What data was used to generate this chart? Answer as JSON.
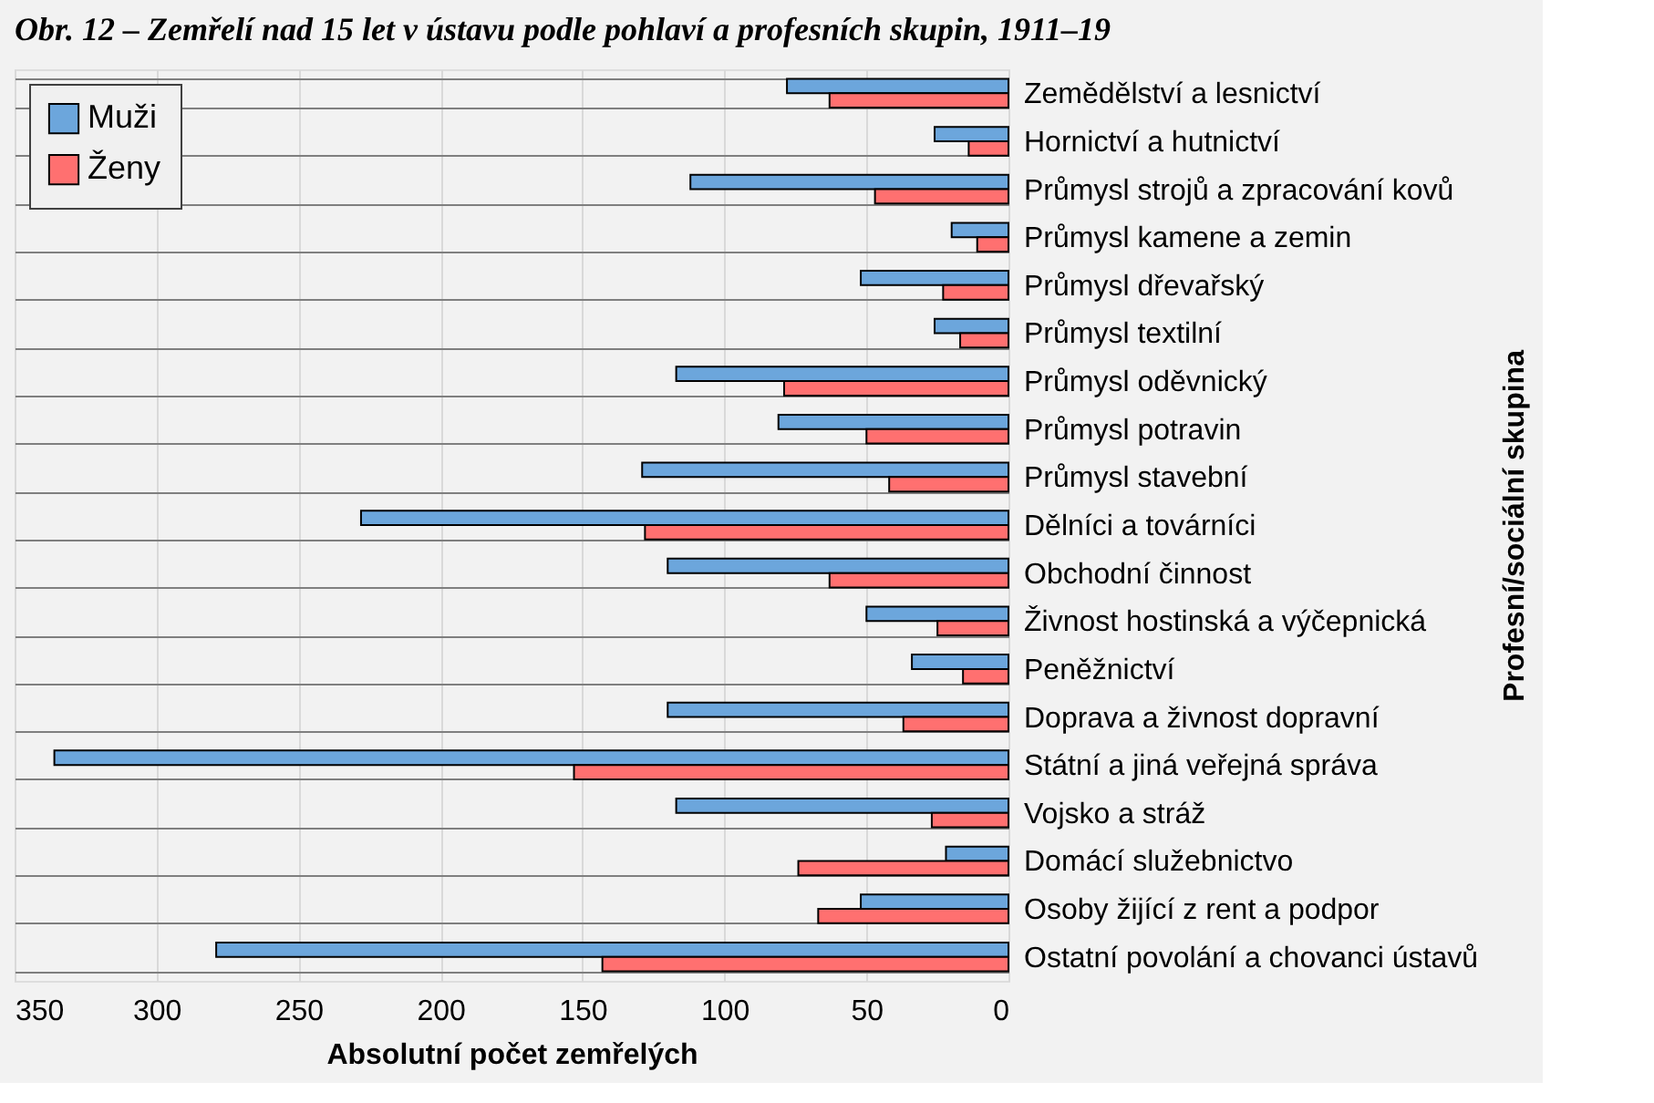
{
  "chart_data": {
    "type": "bar",
    "orientation": "horizontal",
    "title": "Obr. 12 – Zemřelí nad 15 let v ústavu podle pohlaví a profesních skupin, 1911–19",
    "xlabel": "Absolutní počet zemřelých",
    "ylabel": "Profesní/sociální skupina",
    "categories": [
      "Zemědělství a lesnictví",
      "Hornictví a hutnictví",
      "Průmysl strojů a zpracování kovů",
      "Průmysl kamene a zemin",
      "Průmysl dřevařský",
      "Průmysl textilní",
      "Průmysl oděvnický",
      "Průmysl potravin",
      "Průmysl stavební",
      "Dělníci a továrníci",
      "Obchodní činnost",
      "Živnost hostinská a výčepnická",
      "Peněžnictví",
      "Doprava a živnost dopravní",
      "Státní a jiná veřejná správa",
      "Vojsko a stráž",
      "Domácí služebnictvo",
      "Osoby žijící z rent a podpor",
      "Ostatní povolání a chovanci ústavů"
    ],
    "series": [
      {
        "name": "Muži",
        "color": "#6ca6dc",
        "values": [
          78,
          26,
          112,
          20,
          52,
          26,
          117,
          81,
          129,
          228,
          120,
          50,
          34,
          120,
          336,
          117,
          22,
          52,
          279
        ]
      },
      {
        "name": "Ženy",
        "color": "#ff7070",
        "values": [
          63,
          14,
          47,
          11,
          23,
          17,
          79,
          50,
          42,
          128,
          63,
          25,
          16,
          37,
          153,
          27,
          74,
          67,
          143
        ]
      }
    ],
    "xlim": [
      350,
      0
    ],
    "xticks": [
      350,
      300,
      250,
      200,
      150,
      100,
      50,
      0
    ],
    "grid": true,
    "legend": "top left"
  }
}
